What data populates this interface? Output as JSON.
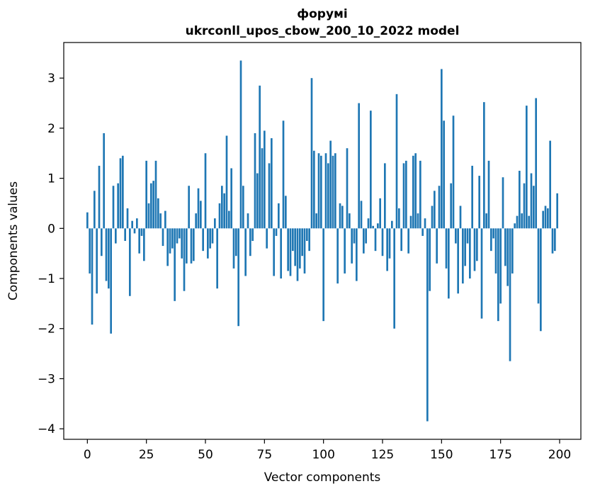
{
  "figure": {
    "background": "#ffffff"
  },
  "chart_data": {
    "type": "bar",
    "title": "форумі",
    "subtitle": "ukrconll_upos_cbow_200_10_2022 model",
    "xlabel": "Vector components",
    "ylabel": "Components values",
    "bar_color": "#1f77b4",
    "grid": false,
    "legend": "none",
    "xlim": [
      -10,
      209
    ],
    "ylim": [
      -4.21,
      3.71
    ],
    "x_ticks": [
      0,
      25,
      50,
      75,
      100,
      125,
      150,
      175,
      200
    ],
    "y_ticks": [
      -4,
      -3,
      -2,
      -1,
      0,
      1,
      2,
      3
    ],
    "values": [
      0.32,
      -0.9,
      -1.92,
      0.75,
      -1.3,
      1.25,
      -0.55,
      1.9,
      -1.05,
      -1.2,
      -2.1,
      0.85,
      -0.3,
      0.9,
      1.4,
      1.45,
      -0.25,
      0.4,
      -1.35,
      0.15,
      -0.1,
      0.2,
      -0.5,
      -0.15,
      -0.65,
      1.35,
      0.5,
      0.9,
      0.95,
      1.35,
      0.6,
      0.3,
      -0.35,
      0.35,
      -0.75,
      -0.5,
      -0.4,
      -1.45,
      -0.3,
      -0.2,
      -0.6,
      -1.25,
      -0.7,
      0.85,
      -0.7,
      -0.65,
      0.3,
      0.8,
      0.55,
      -0.45,
      1.5,
      -0.6,
      -0.4,
      -0.3,
      0.2,
      -1.2,
      0.5,
      0.85,
      0.7,
      1.85,
      0.35,
      1.2,
      -0.8,
      -0.55,
      -1.95,
      3.35,
      0.85,
      -0.95,
      0.3,
      -0.55,
      -0.25,
      1.9,
      1.1,
      2.85,
      1.6,
      1.95,
      -0.4,
      1.3,
      1.8,
      -0.95,
      -0.15,
      0.5,
      -1.0,
      2.15,
      0.65,
      -0.85,
      -0.95,
      -0.45,
      -0.75,
      -1.05,
      -0.8,
      -0.55,
      -0.9,
      -0.25,
      -0.45,
      3.0,
      1.55,
      0.3,
      1.5,
      1.45,
      -1.85,
      1.5,
      1.3,
      1.75,
      1.45,
      1.5,
      -1.1,
      0.5,
      0.45,
      -0.9,
      1.6,
      0.3,
      -0.7,
      -0.3,
      -1.05,
      2.5,
      0.55,
      -0.5,
      -0.3,
      0.2,
      2.35,
      0.05,
      -0.45,
      0.1,
      0.6,
      -0.55,
      1.3,
      -0.85,
      -0.6,
      0.15,
      -2.0,
      2.68,
      0.4,
      -0.45,
      1.3,
      1.35,
      -0.5,
      0.25,
      1.45,
      1.5,
      0.3,
      1.35,
      -0.15,
      0.2,
      -3.85,
      -1.25,
      0.45,
      0.75,
      -0.7,
      0.85,
      3.18,
      2.15,
      -0.8,
      -1.4,
      0.9,
      2.25,
      -0.3,
      -1.3,
      0.45,
      -1.1,
      -0.75,
      -0.3,
      -1.0,
      1.25,
      -0.85,
      -0.65,
      1.05,
      -1.8,
      2.52,
      0.3,
      1.35,
      -0.45,
      -0.2,
      -0.9,
      -1.85,
      -1.5,
      1.02,
      -0.75,
      -1.15,
      -2.65,
      -0.9,
      0.1,
      0.25,
      1.15,
      0.3,
      0.9,
      2.45,
      0.25,
      1.1,
      0.85,
      2.6,
      -1.5,
      -2.05,
      0.35,
      0.45,
      0.4,
      1.75,
      -0.5,
      -0.45,
      0.7
    ]
  }
}
